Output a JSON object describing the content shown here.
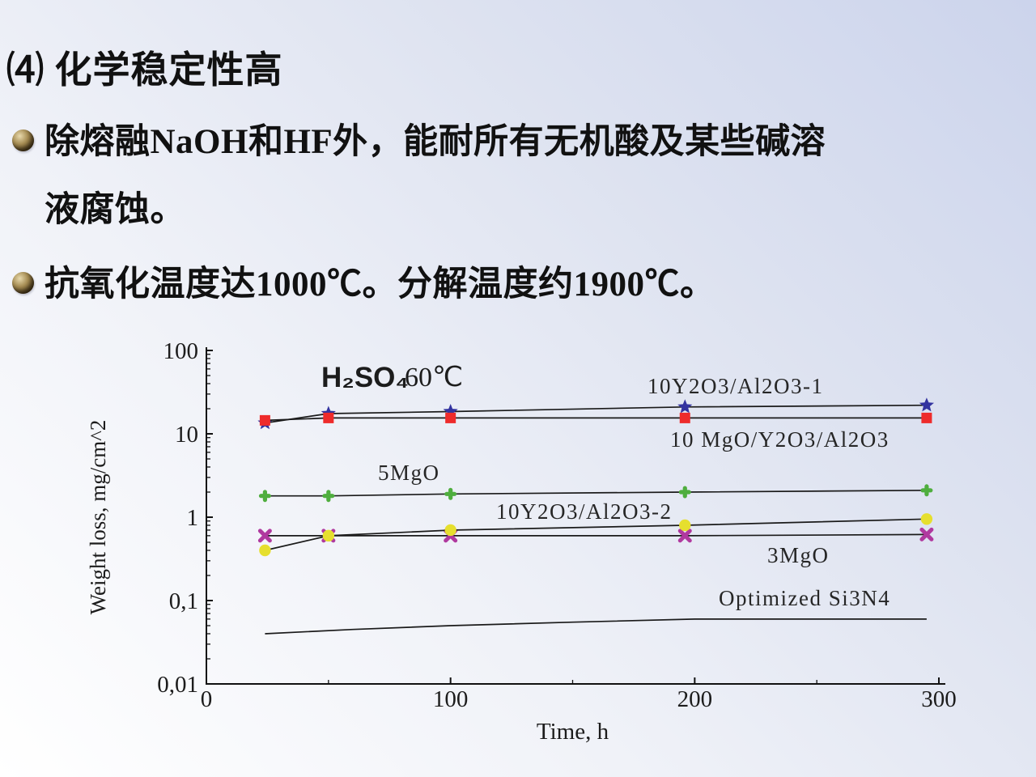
{
  "slide": {
    "title": "⑷ 化学稳定性高",
    "bullets": [
      {
        "text": "除熔融NaOH和HF外，能耐所有无机酸及某些碱溶\n液腐蚀。"
      },
      {
        "text": "抗氧化温度达1000℃。分解温度约1900℃。"
      }
    ]
  },
  "chart_data": {
    "type": "line",
    "title": {
      "formula": "H₂SO₄",
      "temperature": "60℃",
      "formula_color": "#8e2430",
      "temperature_color": "#9a4040"
    },
    "xlabel": "Time, h",
    "ylabel": "Weight loss, mg/cm^2",
    "x_axis": {
      "min": 0,
      "max": 300,
      "ticks": [
        {
          "label": "0",
          "value": 0
        },
        {
          "label": "100",
          "value": 100
        },
        {
          "label": "200",
          "value": 200
        },
        {
          "label": "300",
          "value": 300
        }
      ],
      "minor_ticks": [
        50,
        150,
        250
      ]
    },
    "y_axis": {
      "scale": "log",
      "min": 0.01,
      "max": 100,
      "ticks": [
        {
          "label": "100",
          "value": 100
        },
        {
          "label": "10",
          "value": 10
        },
        {
          "label": "1",
          "value": 1
        },
        {
          "label": "0,1",
          "value": 0.1
        },
        {
          "label": "0,01",
          "value": 0.01
        }
      ]
    },
    "line_color": "#1a1a1a",
    "series": [
      {
        "name": "10Y2O3/Al2O3-1",
        "marker": "star",
        "color": "#3333a0",
        "x": [
          24,
          50,
          100,
          196,
          295
        ],
        "y": [
          13.5,
          17.5,
          18.5,
          21,
          22
        ]
      },
      {
        "name": "10 MgO/Y2O3/Al2O3",
        "marker": "square",
        "color": "#ee2b2b",
        "x": [
          24,
          50,
          100,
          196,
          295
        ],
        "y": [
          14.5,
          15.5,
          15.5,
          15.5,
          15.5
        ]
      },
      {
        "name": "5MgO",
        "marker": "clover",
        "color": "#4fae3e",
        "x": [
          24,
          50,
          100,
          196,
          295
        ],
        "y": [
          1.8,
          1.8,
          1.9,
          2.0,
          2.1
        ]
      },
      {
        "name": "10Y2O3/Al2O3-2",
        "marker": "circle",
        "color": "#e6df2e",
        "x": [
          24,
          50,
          100,
          196,
          295
        ],
        "y": [
          0.4,
          0.6,
          0.7,
          0.8,
          0.95
        ]
      },
      {
        "name": "3MgO",
        "marker": "x",
        "color": "#b0399f",
        "x": [
          24,
          50,
          100,
          196,
          295
        ],
        "y": [
          0.6,
          0.6,
          0.6,
          0.6,
          0.62
        ]
      },
      {
        "name": "Optimized Si3N4",
        "marker": "none",
        "color": "#1a1a1a",
        "x": [
          24,
          60,
          100,
          150,
          200,
          295
        ],
        "y": [
          0.04,
          0.045,
          0.05,
          0.055,
          0.06,
          0.06
        ]
      }
    ]
  }
}
